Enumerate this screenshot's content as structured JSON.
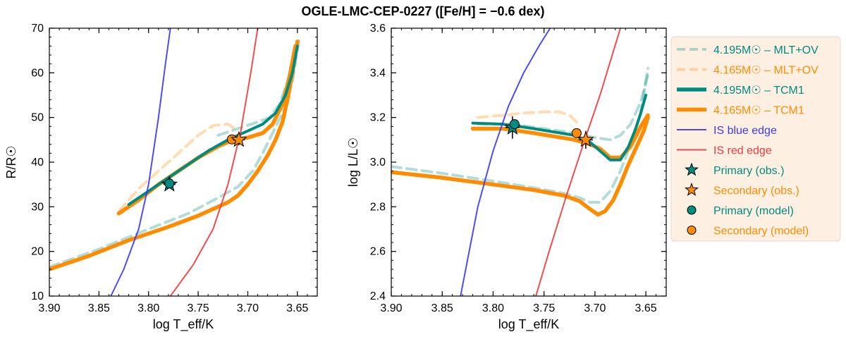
{
  "chart_data": {
    "title": "OGLE-LMC-CEP-0227 ([Fe/H] = −0.6 dex)",
    "colors": {
      "teal": "#008b80",
      "orange": "#ff8c00",
      "blue_edge": "#3a3aee",
      "red_edge": "#ee3a3a",
      "legend_bg": "#fdf0e2"
    },
    "legend": {
      "position": "right, outside the plots",
      "entries": [
        {
          "key": "mltov_primary",
          "label": "4.195M☉ – MLT+OV",
          "style": "dashed-faded",
          "color": "teal"
        },
        {
          "key": "mltov_secondary",
          "label": "4.165M☉ – MLT+OV",
          "style": "dashed-faded",
          "color": "orange"
        },
        {
          "key": "tcm_primary",
          "label": "4.195M☉ – TCM1",
          "style": "solid-thick",
          "color": "teal"
        },
        {
          "key": "tcm_secondary",
          "label": "4.165M☉ – TCM1",
          "style": "solid-thick",
          "color": "orange"
        },
        {
          "key": "is_blue",
          "label": "IS blue edge",
          "style": "solid-thin",
          "color": "blue_edge"
        },
        {
          "key": "is_red",
          "label": "IS red edge",
          "style": "solid-thin",
          "color": "red_edge"
        },
        {
          "key": "prim_obs",
          "label": "Primary (obs.)",
          "style": "star",
          "color": "teal"
        },
        {
          "key": "sec_obs",
          "label": "Secondary (obs.)",
          "style": "star",
          "color": "orange"
        },
        {
          "key": "prim_model",
          "label": "Primary (model)",
          "style": "circle",
          "color": "teal"
        },
        {
          "key": "sec_model",
          "label": "Secondary (model)",
          "style": "circle",
          "color": "orange"
        }
      ]
    },
    "panels": [
      {
        "id": "radius",
        "type": "line",
        "xlabel": "log T_eff/K",
        "ylabel": "R/R☉",
        "xlim": [
          3.9,
          3.63
        ],
        "ylim": [
          10,
          70
        ],
        "xticks": [
          3.9,
          3.85,
          3.8,
          3.75,
          3.7,
          3.65
        ],
        "xtick_labels": [
          "3.90",
          "3.85",
          "3.80",
          "3.75",
          "3.70",
          "3.65"
        ],
        "yticks": [
          10,
          20,
          30,
          40,
          50,
          60,
          70
        ],
        "ytick_labels": [
          "10",
          "20",
          "30",
          "40",
          "50",
          "60",
          "70"
        ],
        "series": [
          {
            "key": "mltov_secondary",
            "color": "orange",
            "style": "dashed-faded",
            "x": [
              3.83,
              3.81,
              3.79,
              3.77,
              3.75,
              3.735,
              3.72,
              3.71
            ],
            "y": [
              29,
              34,
              38,
              42,
              46,
              48.2,
              48.5,
              47
            ]
          },
          {
            "key": "mltov_primary",
            "color": "teal",
            "style": "dashed-faded",
            "x": [
              3.9,
              3.85,
              3.8,
              3.76,
              3.73,
              3.71,
              3.695,
              3.685,
              3.675,
              3.665,
              3.655,
              3.648
            ],
            "y": [
              16.5,
              20.5,
              25,
              28.5,
              32,
              34.5,
              38,
              42,
              46.5,
              51,
              58,
              68
            ]
          },
          {
            "key": "mltov_primary_loop",
            "color": "teal",
            "style": "dashed-faded",
            "x": [
              3.73,
              3.71,
              3.69,
              3.678,
              3.668,
              3.66,
              3.652
            ],
            "y": [
              46,
              47.5,
              49,
              50,
              53,
              58,
              66
            ]
          },
          {
            "key": "tcm_secondary",
            "color": "orange",
            "style": "solid-thick",
            "x": [
              3.9,
              3.86,
              3.82,
              3.78,
              3.75,
              3.73,
              3.72,
              3.71,
              3.7,
              3.69,
              3.68,
              3.672,
              3.665,
              3.66,
              3.655,
              3.65
            ],
            "y": [
              16,
              19,
              22.5,
              25.5,
              28,
              30,
              31,
              32.5,
              35,
              38,
              41.5,
              45,
              49,
              54,
              60,
              67
            ]
          },
          {
            "key": "tcm_secondary_loop",
            "color": "orange",
            "style": "solid-thick",
            "x": [
              3.83,
              3.81,
              3.79,
              3.77,
              3.75,
              3.73,
              3.715,
              3.7,
              3.685,
              3.675,
              3.665,
              3.658,
              3.652
            ],
            "y": [
              28.5,
              31.5,
              35,
              38,
              41,
              43.5,
              45,
              45.5,
              46.5,
              48.5,
              53,
              59,
              66
            ]
          },
          {
            "key": "tcm_primary",
            "color": "teal",
            "style": "solid",
            "x": [
              3.82,
              3.8,
              3.78,
              3.76,
              3.74,
              3.72,
              3.7,
              3.685,
              3.672,
              3.662,
              3.655,
              3.65
            ],
            "y": [
              30.5,
              33.5,
              36.5,
              39.5,
              42.5,
              45,
              47,
              48.5,
              51,
              55,
              60,
              66
            ]
          },
          {
            "key": "is_blue",
            "color": "blue_edge",
            "style": "solid-thin",
            "x": [
              3.838,
              3.825,
              3.81,
              3.8,
              3.79,
              3.783,
              3.778
            ],
            "y": [
              10,
              16,
              25,
              35,
              50,
              62,
              70
            ]
          },
          {
            "key": "is_red",
            "color": "red_edge",
            "style": "solid-thin",
            "x": [
              3.778,
              3.755,
              3.735,
              3.72,
              3.707,
              3.697,
              3.69
            ],
            "y": [
              10,
              17,
              25,
              35,
              47,
              60,
              70
            ]
          }
        ],
        "points": [
          {
            "key": "prim_obs",
            "color": "teal",
            "marker": "star",
            "x": 3.779,
            "y": 35,
            "xerr": 0.006,
            "yerr": 0.8
          },
          {
            "key": "prim_model",
            "color": "teal",
            "marker": "circle",
            "x": 3.779,
            "y": 35.2
          },
          {
            "key": "sec_model",
            "color": "orange",
            "marker": "circle",
            "x": 3.716,
            "y": 45.1
          },
          {
            "key": "sec_obs",
            "color": "orange",
            "marker": "star",
            "x": 3.709,
            "y": 45,
            "xerr": 0.006,
            "yerr": 1.2
          }
        ]
      },
      {
        "id": "luminosity",
        "type": "line",
        "xlabel": "log T_eff/K",
        "ylabel": "log L/L☉",
        "xlim": [
          3.9,
          3.63
        ],
        "ylim": [
          2.4,
          3.6
        ],
        "xticks": [
          3.9,
          3.85,
          3.8,
          3.75,
          3.7,
          3.65
        ],
        "xtick_labels": [
          "3.90",
          "3.85",
          "3.80",
          "3.75",
          "3.70",
          "3.65"
        ],
        "yticks": [
          2.4,
          2.6,
          2.8,
          3.0,
          3.2,
          3.4,
          3.6
        ],
        "ytick_labels": [
          "2.4",
          "2.6",
          "2.8",
          "3.0",
          "3.2",
          "3.4",
          "3.6"
        ],
        "series": [
          {
            "key": "mltov_secondary",
            "color": "orange",
            "style": "dashed-faded",
            "x": [
              3.815,
              3.79,
              3.77,
              3.75,
              3.735,
              3.725,
              3.718
            ],
            "y": [
              3.2,
              3.21,
              3.22,
              3.225,
              3.225,
              3.21,
              3.18
            ]
          },
          {
            "key": "mltov_primary",
            "color": "teal",
            "style": "dashed-faded",
            "x": [
              3.9,
              3.85,
              3.8,
              3.76,
              3.73,
              3.715,
              3.705,
              3.695,
              3.685,
              3.675,
              3.665,
              3.655,
              3.648
            ],
            "y": [
              2.98,
              2.95,
              2.915,
              2.885,
              2.86,
              2.84,
              2.82,
              2.82,
              2.87,
              2.96,
              3.08,
              3.22,
              3.42
            ]
          },
          {
            "key": "mltov_primary_loop",
            "color": "teal",
            "style": "dashed-faded",
            "x": [
              3.815,
              3.78,
              3.75,
              3.72,
              3.7,
              3.685,
              3.675,
              3.665,
              3.655,
              3.648
            ],
            "y": [
              3.17,
              3.17,
              3.15,
              3.13,
              3.11,
              3.1,
              3.12,
              3.17,
              3.27,
              3.39
            ]
          },
          {
            "key": "tcm_secondary",
            "color": "orange",
            "style": "solid-thick",
            "x": [
              3.9,
              3.85,
              3.8,
              3.76,
              3.73,
              3.715,
              3.705,
              3.697,
              3.69,
              3.682,
              3.675,
              3.668,
              3.66,
              3.652,
              3.648
            ],
            "y": [
              2.955,
              2.93,
              2.9,
              2.875,
              2.85,
              2.825,
              2.79,
              2.765,
              2.78,
              2.83,
              2.9,
              2.98,
              3.06,
              3.14,
              3.2
            ]
          },
          {
            "key": "tcm_secondary_loop",
            "color": "orange",
            "style": "solid-thick",
            "x": [
              3.82,
              3.79,
              3.76,
              3.74,
              3.72,
              3.705,
              3.695,
              3.685,
              3.675,
              3.665,
              3.655,
              3.648
            ],
            "y": [
              3.15,
              3.15,
              3.13,
              3.115,
              3.1,
              3.08,
              3.06,
              3.02,
              3.02,
              3.07,
              3.16,
              3.21
            ]
          },
          {
            "key": "tcm_primary",
            "color": "teal",
            "style": "solid",
            "x": [
              3.82,
              3.79,
              3.76,
              3.74,
              3.72,
              3.705,
              3.695,
              3.685,
              3.675,
              3.667,
              3.66,
              3.655,
              3.65
            ],
            "y": [
              3.175,
              3.17,
              3.15,
              3.135,
              3.12,
              3.09,
              3.05,
              3.01,
              3.01,
              3.07,
              3.15,
              3.22,
              3.3
            ]
          },
          {
            "key": "is_blue",
            "color": "blue_edge",
            "style": "solid-thin",
            "x": [
              3.832,
              3.815,
              3.8,
              3.785,
              3.77,
              3.755,
              3.744
            ],
            "y": [
              2.4,
              2.8,
              3.05,
              3.25,
              3.4,
              3.52,
              3.6
            ]
          },
          {
            "key": "is_red",
            "color": "red_edge",
            "style": "solid-thin",
            "x": [
              3.758,
              3.745,
              3.728,
              3.71,
              3.695,
              3.683,
              3.675
            ],
            "y": [
              2.4,
              2.6,
              2.85,
              3.1,
              3.3,
              3.48,
              3.6
            ]
          }
        ],
        "points": [
          {
            "key": "prim_obs",
            "color": "teal",
            "marker": "star",
            "x": 3.781,
            "y": 3.155,
            "xerr": 0.007,
            "yerr": 0.05
          },
          {
            "key": "prim_model",
            "color": "teal",
            "marker": "circle",
            "x": 3.779,
            "y": 3.17
          },
          {
            "key": "sec_model",
            "color": "orange",
            "marker": "circle",
            "x": 3.718,
            "y": 3.13
          },
          {
            "key": "sec_obs",
            "color": "orange",
            "marker": "star",
            "x": 3.709,
            "y": 3.1,
            "xerr": 0.007,
            "yerr": 0.04
          }
        ]
      }
    ]
  }
}
